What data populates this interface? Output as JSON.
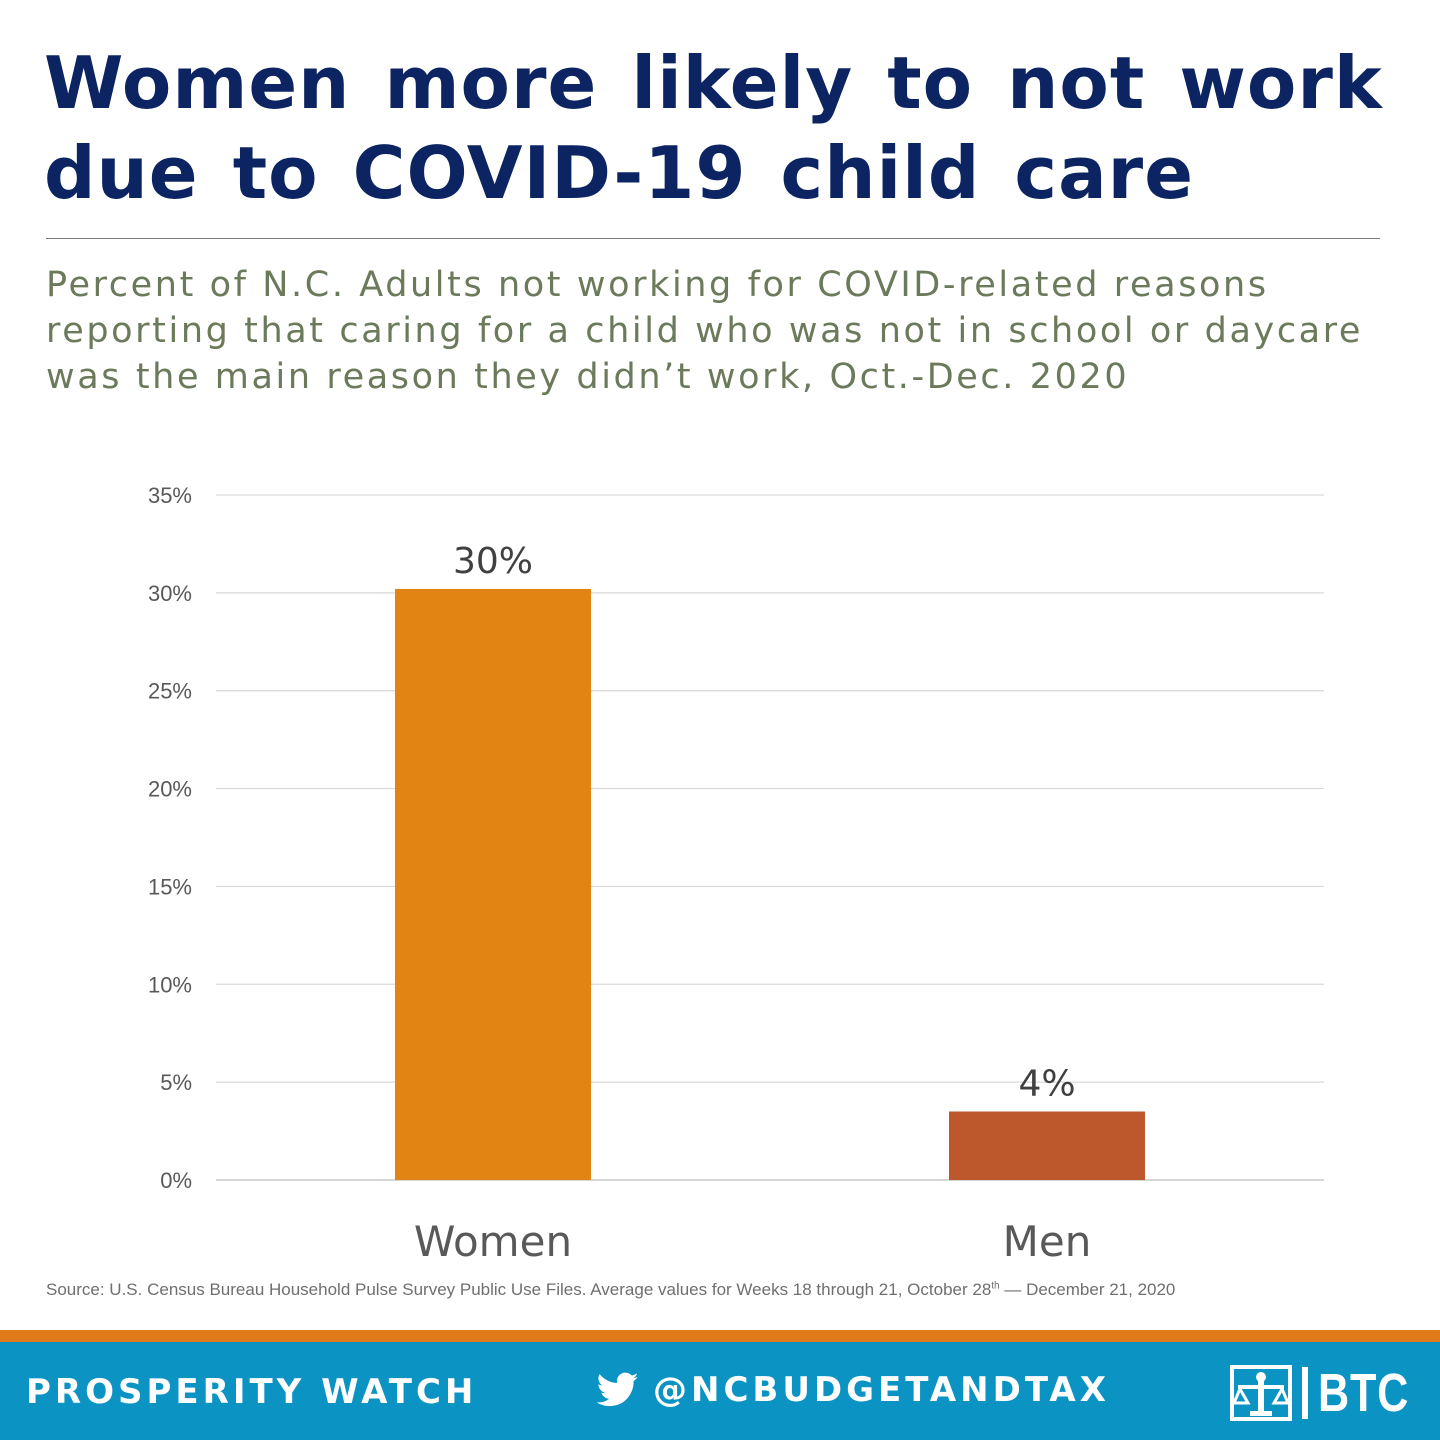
{
  "title": "Women more likely to not work due to COVID-19 child care",
  "subtitle": "Percent of N.C. Adults not working for COVID-related reasons reporting that caring for a child who was not in school or daycare was the main reason they didn’t work, Oct.-Dec. 2020",
  "source_main": "Source: U.S. Census Bureau Household Pulse Survey Public Use Files. Average values for Weeks 18 through 21, October 28",
  "source_sup": "th",
  "source_end": " — December 21, 2020",
  "footer": {
    "brand": "PROSPERITY WATCH",
    "handle": "@NCBUDGETANDTAX",
    "logo_text": "BTC",
    "stripe_color": "#e07b1a",
    "bg_color": "#0b93c4"
  },
  "chart_data": {
    "type": "bar",
    "categories": [
      "Women",
      "Men"
    ],
    "values": [
      30.2,
      3.5
    ],
    "data_labels": [
      "30%",
      "4%"
    ],
    "colors": [
      "#e28413",
      "#bd582c"
    ],
    "ylim": [
      0,
      35
    ],
    "yticks": [
      0,
      5,
      10,
      15,
      20,
      25,
      30,
      35
    ],
    "ytick_labels": [
      "0%",
      "5%",
      "10%",
      "15%",
      "20%",
      "25%",
      "30%",
      "35%"
    ],
    "grid": true,
    "legend": false,
    "xlabel": "",
    "ylabel": ""
  }
}
